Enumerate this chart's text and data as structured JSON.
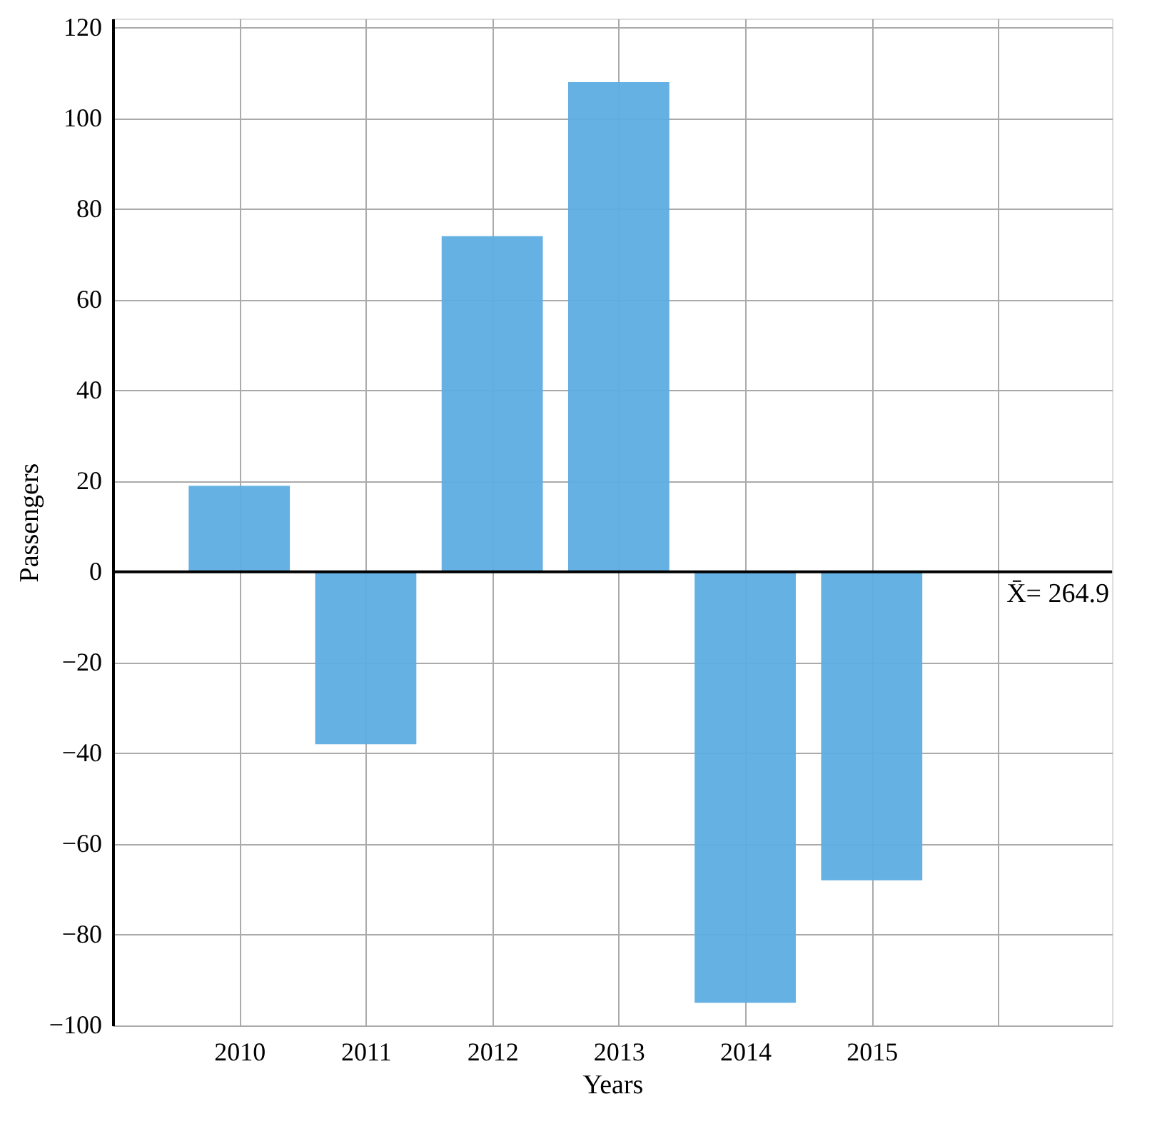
{
  "chart_data": {
    "type": "bar",
    "xlabel": "Years",
    "ylabel": "Passengers",
    "categories": [
      "2010",
      "2011",
      "2012",
      "2013",
      "2014",
      "2015"
    ],
    "values": [
      19,
      -38,
      74,
      108,
      -95,
      -68
    ],
    "color": "#5dade2",
    "ylim": [
      -100,
      122
    ],
    "yticks": [
      -100,
      -80,
      -60,
      -40,
      -20,
      0,
      20,
      40,
      60,
      80,
      100,
      120
    ],
    "ref_lines": [
      {
        "axis": "y",
        "value": 0,
        "color": "#000000"
      }
    ],
    "annotations": [
      {
        "text": "X̄= 264.9",
        "y": 0
      }
    ],
    "grid": true
  }
}
